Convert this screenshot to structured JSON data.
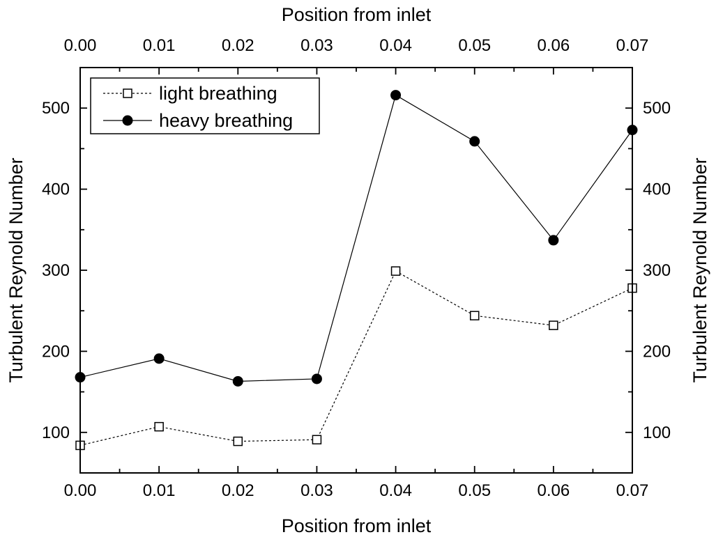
{
  "chart_data": {
    "type": "line",
    "title": "",
    "xlabel": "Position from inlet",
    "x2label": "Position from inlet",
    "ylabel": "Turbulent Reynold Number",
    "y2label": "Turbulent Reynold Number",
    "xlim": [
      0.0,
      0.07
    ],
    "ylim": [
      50,
      550
    ],
    "xticks": [
      0.0,
      0.01,
      0.02,
      0.03,
      0.04,
      0.05,
      0.06,
      0.07
    ],
    "xtick_labels": [
      "0.00",
      "0.01",
      "0.02",
      "0.03",
      "0.04",
      "0.05",
      "0.06",
      "0.07"
    ],
    "yticks": [
      100,
      200,
      300,
      400,
      500
    ],
    "ytick_labels": [
      "100",
      "200",
      "300",
      "400",
      "500"
    ],
    "x": [
      0.0,
      0.01,
      0.02,
      0.03,
      0.04,
      0.05,
      0.06,
      0.07
    ],
    "series": [
      {
        "name": "light breathing",
        "line_style": "dashed",
        "marker": "open-square",
        "values": [
          84,
          107,
          89,
          91,
          299,
          244,
          232,
          278
        ]
      },
      {
        "name": "heavy breathing",
        "line_style": "solid",
        "marker": "filled-circle",
        "values": [
          168,
          191,
          163,
          166,
          516,
          459,
          337,
          473
        ]
      }
    ],
    "legend_position": "top-left",
    "grid": false
  }
}
